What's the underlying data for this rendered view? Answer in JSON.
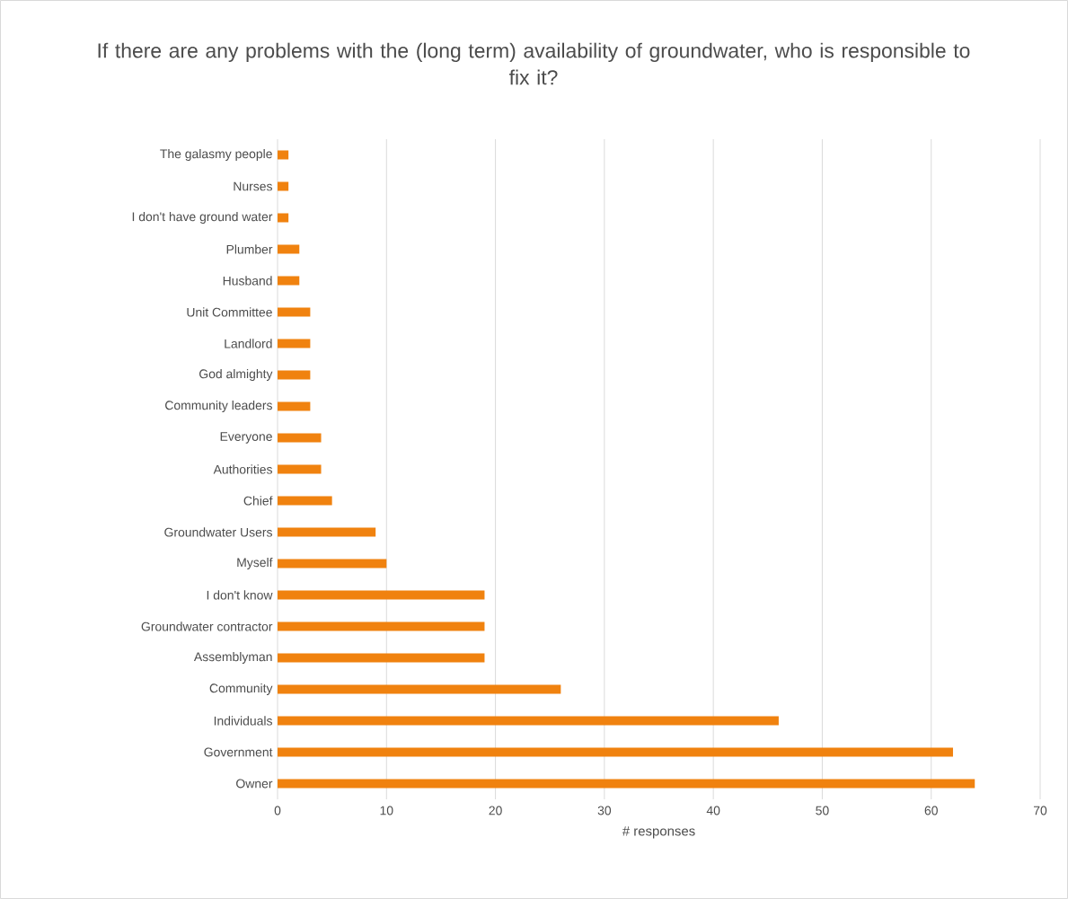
{
  "chart_data": {
    "type": "bar",
    "orientation": "horizontal",
    "title": "If there are any problems with the (long term) availability of groundwater, who is responsible to fix it?",
    "xlabel": "# responses",
    "categories": [
      "The galasmy people",
      "Nurses",
      "I don't have ground water",
      "Plumber",
      "Husband",
      "Unit Committee",
      "Landlord",
      "God almighty",
      "Community leaders",
      "Everyone",
      "Authorities",
      "Chief",
      "Groundwater Users",
      "Myself",
      "I don't know",
      "Groundwater contractor",
      "Assemblyman",
      "Community",
      "Individuals",
      "Government",
      "Owner"
    ],
    "values": [
      1,
      1,
      1,
      2,
      2,
      3,
      3,
      3,
      3,
      4,
      4,
      5,
      9,
      10,
      19,
      19,
      19,
      26,
      46,
      62,
      64
    ],
    "color": "#f0820f",
    "xlim": [
      0,
      70
    ],
    "xticks": [
      0,
      10,
      20,
      30,
      40,
      50,
      60,
      70
    ],
    "grid": "x"
  }
}
